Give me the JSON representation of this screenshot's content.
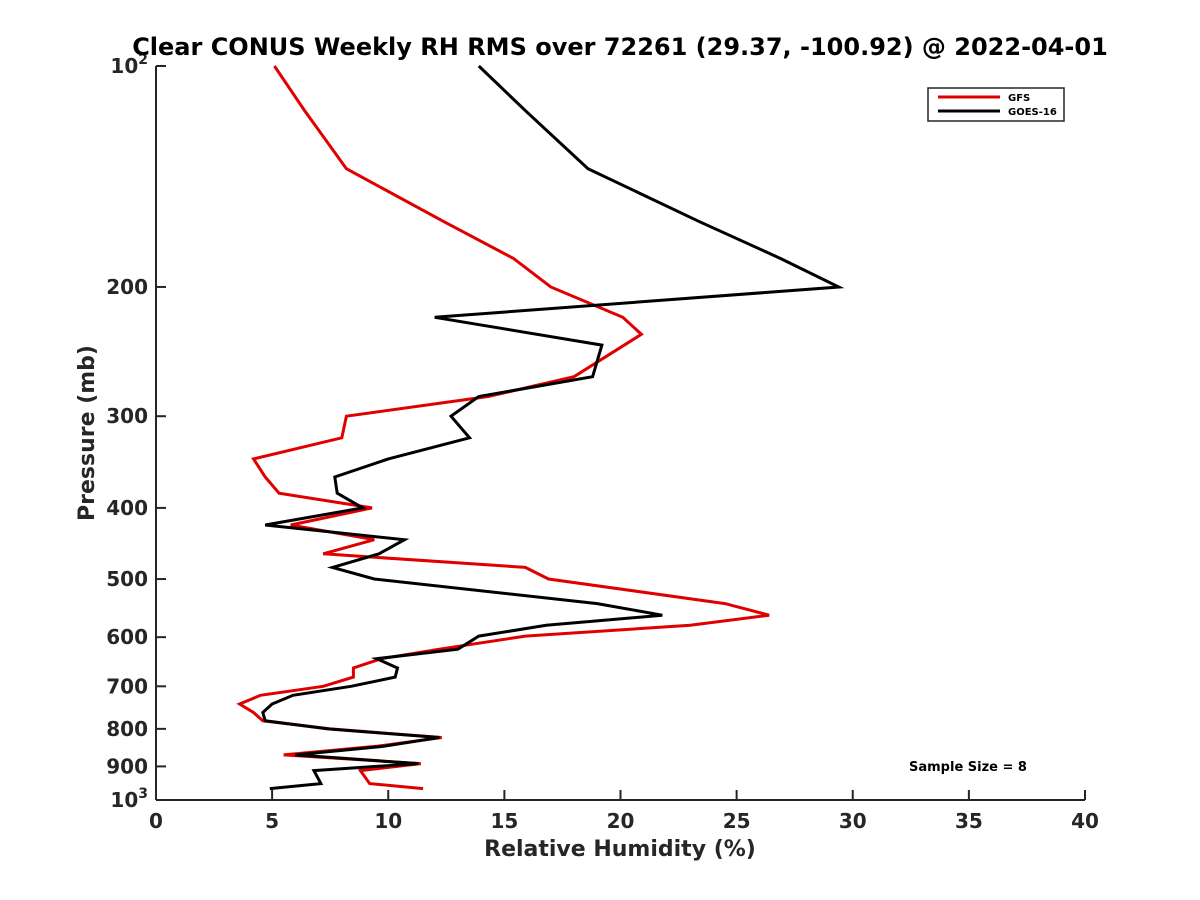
{
  "chart_data": {
    "type": "line",
    "title": "Clear CONUS Weekly RH RMS over 72261 (29.37, -100.92) @ 2022-04-01",
    "xlabel": "Relative Humidity (%)",
    "ylabel": "Pressure (mb)",
    "xlim": [
      0,
      40
    ],
    "ylim": [
      100,
      1000
    ],
    "yscale": "log",
    "yreversed": true,
    "x_ticks": [
      "0",
      "5",
      "10",
      "15",
      "20",
      "25",
      "30",
      "35",
      "40"
    ],
    "y_ticks": [
      {
        "value": 100,
        "base": "10",
        "exp": "2"
      },
      {
        "value": 200,
        "label": "200"
      },
      {
        "value": 300,
        "label": "300"
      },
      {
        "value": 400,
        "label": "400"
      },
      {
        "value": 500,
        "label": "500"
      },
      {
        "value": 600,
        "label": "600"
      },
      {
        "value": 700,
        "label": "700"
      },
      {
        "value": 800,
        "label": "800"
      },
      {
        "value": 900,
        "label": "900"
      },
      {
        "value": 1000,
        "base": "10",
        "exp": "3"
      }
    ],
    "grid": false,
    "legend_position": "top-right",
    "annotation": "Sample Size = 8",
    "series": [
      {
        "name": "GFS",
        "color": "#e00000",
        "points": [
          [
            5.1,
            100
          ],
          [
            6.4,
            115
          ],
          [
            8.2,
            138
          ],
          [
            12.4,
            163
          ],
          [
            15.4,
            183
          ],
          [
            17.0,
            200
          ],
          [
            20.1,
            220
          ],
          [
            20.9,
            232
          ],
          [
            18.0,
            265
          ],
          [
            14.3,
            282
          ],
          [
            8.2,
            300
          ],
          [
            8.0,
            321
          ],
          [
            4.2,
            343
          ],
          [
            4.7,
            363
          ],
          [
            5.3,
            382
          ],
          [
            9.3,
            400
          ],
          [
            5.8,
            422
          ],
          [
            9.4,
            442
          ],
          [
            7.2,
            462
          ],
          [
            15.9,
            482
          ],
          [
            16.9,
            500
          ],
          [
            24.5,
            540
          ],
          [
            26.4,
            560
          ],
          [
            23.0,
            578
          ],
          [
            15.9,
            598
          ],
          [
            12.2,
            623
          ],
          [
            9.7,
            642
          ],
          [
            8.5,
            661
          ],
          [
            8.5,
            680
          ],
          [
            7.2,
            700
          ],
          [
            4.5,
            720
          ],
          [
            3.6,
            740
          ],
          [
            4.2,
            760
          ],
          [
            4.6,
            780
          ],
          [
            7.5,
            800
          ],
          [
            12.3,
            822
          ],
          [
            9.5,
            845
          ],
          [
            5.5,
            868
          ],
          [
            11.4,
            892
          ],
          [
            8.8,
            912
          ],
          [
            9.2,
            950
          ],
          [
            11.5,
            965
          ]
        ]
      },
      {
        "name": "GOES-16",
        "color": "#000000",
        "points": [
          [
            13.9,
            100
          ],
          [
            15.9,
            115
          ],
          [
            18.6,
            138
          ],
          [
            23.4,
            163
          ],
          [
            26.9,
            183
          ],
          [
            29.4,
            200
          ],
          [
            12.0,
            220
          ],
          [
            19.2,
            240
          ],
          [
            18.8,
            265
          ],
          [
            13.9,
            282
          ],
          [
            12.7,
            300
          ],
          [
            13.5,
            321
          ],
          [
            10.0,
            343
          ],
          [
            7.7,
            363
          ],
          [
            7.8,
            382
          ],
          [
            8.9,
            400
          ],
          [
            4.7,
            422
          ],
          [
            10.7,
            442
          ],
          [
            9.6,
            462
          ],
          [
            7.6,
            482
          ],
          [
            9.4,
            500
          ],
          [
            19.0,
            540
          ],
          [
            21.8,
            560
          ],
          [
            16.8,
            578
          ],
          [
            13.9,
            598
          ],
          [
            13.0,
            623
          ],
          [
            9.5,
            642
          ],
          [
            10.4,
            661
          ],
          [
            10.3,
            680
          ],
          [
            8.4,
            700
          ],
          [
            5.9,
            720
          ],
          [
            5.0,
            740
          ],
          [
            4.6,
            760
          ],
          [
            4.7,
            780
          ],
          [
            7.4,
            800
          ],
          [
            12.2,
            822
          ],
          [
            9.8,
            845
          ],
          [
            6.0,
            868
          ],
          [
            11.3,
            892
          ],
          [
            6.8,
            912
          ],
          [
            7.1,
            950
          ],
          [
            4.9,
            965
          ]
        ]
      }
    ]
  }
}
